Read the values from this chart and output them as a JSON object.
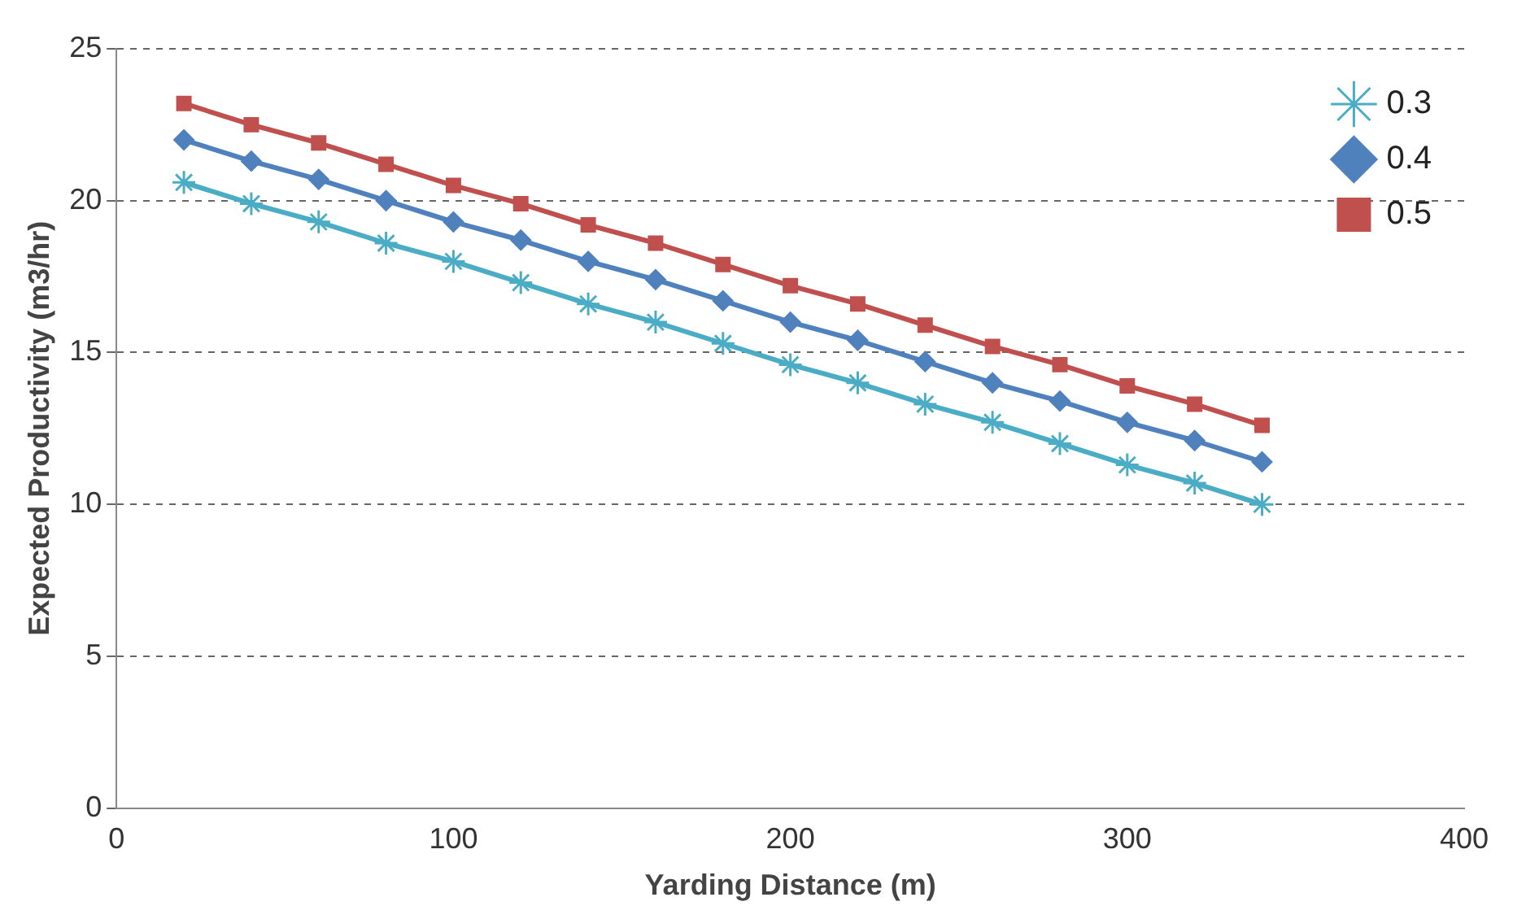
{
  "chart_data": {
    "type": "line",
    "xlabel": "Yarding Distance (m)",
    "ylabel": "Expected Productivity (m3/hr)",
    "x": [
      20,
      40,
      60,
      80,
      100,
      120,
      140,
      160,
      180,
      200,
      220,
      240,
      260,
      280,
      300,
      320,
      340
    ],
    "xlim": [
      0,
      400
    ],
    "xticks": [
      0,
      100,
      200,
      300,
      400
    ],
    "ylim": [
      0,
      25
    ],
    "yticks": [
      0,
      5,
      10,
      15,
      20,
      25
    ],
    "grid": "y",
    "legend": "top right",
    "line_style": "solid",
    "series": [
      {
        "name": "0.3",
        "color": "#4bacc6",
        "marker": "cross",
        "values": [
          20.6,
          19.9,
          19.3,
          18.6,
          18.0,
          17.3,
          16.6,
          16.0,
          15.3,
          14.6,
          14.0,
          13.3,
          12.7,
          12.0,
          11.3,
          10.7,
          10.0
        ]
      },
      {
        "name": "0.4",
        "color": "#4f81bd",
        "marker": "diamond",
        "values": [
          22.0,
          21.3,
          20.7,
          20.0,
          19.3,
          18.7,
          18.0,
          17.4,
          16.7,
          16.0,
          15.4,
          14.7,
          14.0,
          13.4,
          12.7,
          12.1,
          11.4
        ]
      },
      {
        "name": "0.5",
        "color": "#c0504d",
        "marker": "square",
        "values": [
          23.2,
          22.5,
          21.9,
          21.2,
          20.5,
          19.9,
          19.2,
          18.6,
          17.9,
          17.2,
          16.6,
          15.9,
          15.2,
          14.6,
          13.9,
          13.3,
          12.6
        ]
      }
    ]
  }
}
